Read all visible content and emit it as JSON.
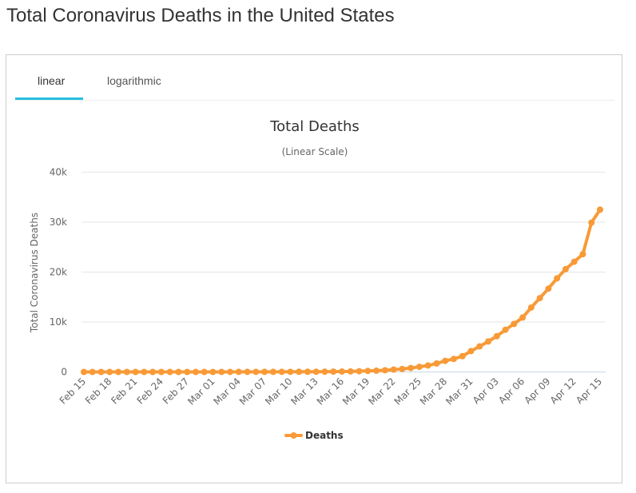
{
  "page": {
    "title": "Total Coronavirus Deaths in the United States"
  },
  "tabs": [
    {
      "label": "linear",
      "active": true
    },
    {
      "label": "logarithmic",
      "active": false
    }
  ],
  "colors": {
    "series": "#f89a37",
    "tab_accent": "#26bde2",
    "grid": "#e6e6e6",
    "axis": "#ccd6eb"
  },
  "chart_data": {
    "type": "line",
    "title": "Total Deaths",
    "subtitle": "(Linear Scale)",
    "xlabel": "",
    "ylabel": "Total Coronavirus Deaths",
    "ylim": [
      0,
      40000
    ],
    "y_ticks": [
      0,
      10000,
      20000,
      30000,
      40000
    ],
    "y_tick_labels": [
      "0",
      "10k",
      "20k",
      "30k",
      "40k"
    ],
    "x_tick_labels": [
      "Feb 15",
      "Feb 18",
      "Feb 21",
      "Feb 24",
      "Feb 27",
      "Mar 01",
      "Mar 04",
      "Mar 07",
      "Mar 10",
      "Mar 13",
      "Mar 16",
      "Mar 19",
      "Mar 22",
      "Mar 25",
      "Mar 28",
      "Mar 31",
      "Apr 03",
      "Apr 06",
      "Apr 09",
      "Apr 12",
      "Apr 15"
    ],
    "grid": true,
    "legend": "bottom-center",
    "categories": [
      "Feb 15",
      "Feb 16",
      "Feb 17",
      "Feb 18",
      "Feb 19",
      "Feb 20",
      "Feb 21",
      "Feb 22",
      "Feb 23",
      "Feb 24",
      "Feb 25",
      "Feb 26",
      "Feb 27",
      "Feb 28",
      "Feb 29",
      "Mar 01",
      "Mar 02",
      "Mar 03",
      "Mar 04",
      "Mar 05",
      "Mar 06",
      "Mar 07",
      "Mar 08",
      "Mar 09",
      "Mar 10",
      "Mar 11",
      "Mar 12",
      "Mar 13",
      "Mar 14",
      "Mar 15",
      "Mar 16",
      "Mar 17",
      "Mar 18",
      "Mar 19",
      "Mar 20",
      "Mar 21",
      "Mar 22",
      "Mar 23",
      "Mar 24",
      "Mar 25",
      "Mar 26",
      "Mar 27",
      "Mar 28",
      "Mar 29",
      "Mar 30",
      "Mar 31",
      "Apr 01",
      "Apr 02",
      "Apr 03",
      "Apr 04",
      "Apr 05",
      "Apr 06",
      "Apr 07",
      "Apr 08",
      "Apr 09",
      "Apr 10",
      "Apr 11",
      "Apr 12",
      "Apr 13",
      "Apr 14",
      "Apr 15"
    ],
    "series": [
      {
        "name": "Deaths",
        "values": [
          0,
          0,
          0,
          0,
          0,
          0,
          0,
          0,
          0,
          0,
          0,
          0,
          0,
          0,
          1,
          1,
          6,
          9,
          11,
          12,
          15,
          19,
          22,
          26,
          30,
          38,
          41,
          48,
          57,
          68,
          86,
          109,
          150,
          208,
          256,
          340,
          471,
          590,
          783,
          1027,
          1295,
          1695,
          2220,
          2610,
          3160,
          4180,
          5130,
          6100,
          7160,
          8450,
          9620,
          10900,
          12910,
          14790,
          16690,
          18750,
          20580,
          22070,
          23580,
          29900,
          32500
        ]
      }
    ]
  }
}
